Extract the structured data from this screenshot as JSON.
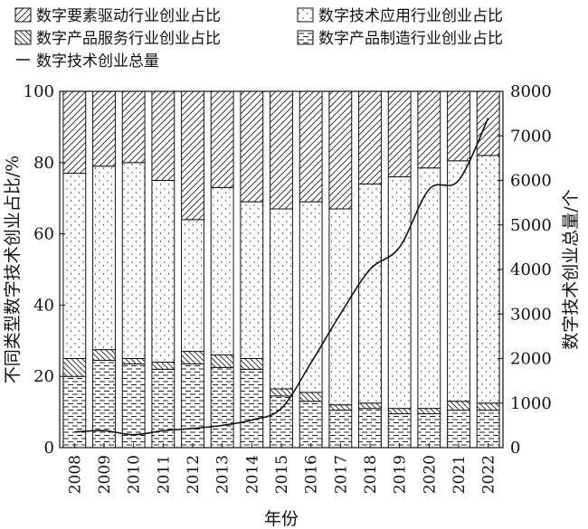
{
  "chart_data": {
    "type": "bar",
    "stacked": true,
    "categories": [
      "2008",
      "2009",
      "2010",
      "2011",
      "2012",
      "2013",
      "2014",
      "2015",
      "2016",
      "2017",
      "2018",
      "2019",
      "2020",
      "2021",
      "2022"
    ],
    "series": [
      {
        "name": "数字产品制造行业创业占比",
        "pattern": "horizontal-dashes",
        "values": [
          20,
          24.5,
          23.5,
          22,
          23.5,
          22.5,
          22,
          14.5,
          13,
          10.5,
          11,
          9.5,
          9.5,
          10.5,
          10.5
        ]
      },
      {
        "name": "数字产品服务行业创业占比",
        "pattern": "back-diagonal",
        "values": [
          5,
          3,
          1.5,
          2,
          3.5,
          3.5,
          3,
          2,
          2.5,
          1.5,
          1.5,
          1.5,
          1.5,
          2.5,
          2
        ]
      },
      {
        "name": "数字技术应用行业创业占比",
        "pattern": "dots",
        "values": [
          52,
          51.5,
          55,
          51,
          37,
          47,
          44,
          50.5,
          53.5,
          55,
          61.5,
          65,
          67.5,
          67.5,
          69.5
        ]
      },
      {
        "name": "数字要素驱动行业创业占比",
        "pattern": "forward-diagonal",
        "values": [
          23,
          21,
          20,
          25,
          36,
          27,
          31,
          33,
          31,
          33,
          26,
          24,
          21.5,
          19.5,
          18
        ]
      }
    ],
    "line_series": {
      "name": "数字技术创业总量",
      "axis": "right",
      "values": [
        350,
        380,
        290,
        380,
        430,
        500,
        620,
        880,
        1900,
        3000,
        4000,
        4500,
        5800,
        6000,
        7400
      ]
    },
    "xlabel": "年份",
    "ylabel": "不同类型数字技术创业占比/%",
    "y2label": "数字技术创业总量/个",
    "ylim": [
      0,
      100
    ],
    "y2lim": [
      0,
      8000
    ],
    "yticks": [
      0,
      20,
      40,
      60,
      80,
      100
    ],
    "y2ticks": [
      0,
      1000,
      2000,
      3000,
      4000,
      5000,
      6000,
      7000,
      8000
    ],
    "grid": false,
    "legend_position": "top",
    "legend": [
      {
        "label": "数字要素驱动行业创业占比",
        "swatch": "forward-diagonal"
      },
      {
        "label": "数字技术应用行业创业占比",
        "swatch": "dots"
      },
      {
        "label": "数字产品服务行业创业占比",
        "swatch": "back-diagonal"
      },
      {
        "label": "数字产品制造行业创业占比",
        "swatch": "horizontal-dashes"
      },
      {
        "label": "数字技术创业总量",
        "swatch": "line"
      }
    ]
  }
}
